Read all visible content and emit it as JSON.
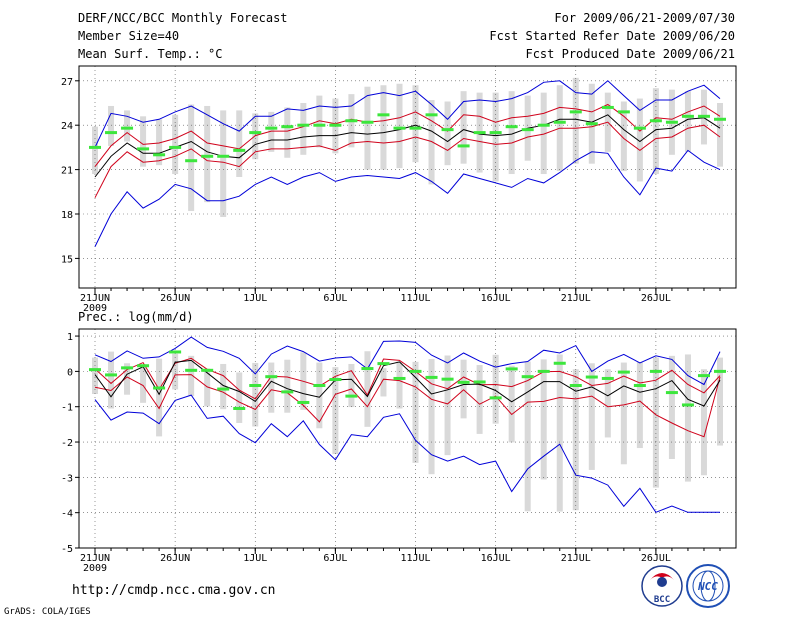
{
  "header": {
    "title": "DERF/NCC/BCC Monthly Forecast",
    "member_size": "Member Size=40",
    "forecast_period": "For 2009/06/21-2009/07/30",
    "started_refer": "Fcst Started Refer Date 2009/06/20",
    "produced_date": "Fcst Produced Date 2009/06/21"
  },
  "footer": {
    "url": "http://cmdp.ncc.cma.gov.cn",
    "grads_credit": "GrADS: COLA/IGES",
    "logo_bcc_text": "BCC",
    "logo_ncc_text": "NCC"
  },
  "colors": {
    "ensemble_mean": "#000000",
    "spread_band": "#d0021b",
    "extreme_range": "#0000d8",
    "observation_bar": "#d9d9d9",
    "green_marker": "#3ce63c"
  },
  "chart_data": [
    {
      "type": "line",
      "title": "Mean Surf. Temp.: °C",
      "x_days": 40,
      "xticks": [
        {
          "day": 0,
          "label": "21JUN"
        },
        {
          "day": 5,
          "label": "26JUN"
        },
        {
          "day": 10,
          "label": "1JUL"
        },
        {
          "day": 15,
          "label": "6JUL"
        },
        {
          "day": 20,
          "label": "11JUL"
        },
        {
          "day": 25,
          "label": "16JUL"
        },
        {
          "day": 30,
          "label": "21JUL"
        },
        {
          "day": 35,
          "label": "26JUL"
        }
      ],
      "year_label": "2009",
      "ylim": [
        13,
        28
      ],
      "yticks": [
        15,
        18,
        21,
        24,
        27
      ],
      "series": [
        {
          "name": "max",
          "values": [
            22.5,
            24.8,
            24.6,
            24.2,
            24.4,
            24.9,
            25.3,
            24.7,
            24.1,
            23.6,
            24.6,
            24.6,
            25.1,
            25.0,
            25.3,
            25.2,
            25.3,
            26.0,
            26.2,
            26.0,
            26.3,
            25.4,
            24.4,
            25.6,
            25.7,
            25.6,
            25.8,
            26.2,
            26.9,
            27.0,
            26.2,
            26.1,
            27.0,
            26.0,
            25.0,
            25.7,
            25.7,
            26.3,
            26.7,
            25.8
          ]
        },
        {
          "name": "upper",
          "values": [
            21.2,
            22.6,
            23.5,
            22.7,
            22.8,
            23.1,
            23.6,
            22.8,
            22.6,
            22.4,
            23.3,
            23.6,
            23.6,
            23.9,
            24.3,
            24.1,
            24.4,
            24.2,
            24.3,
            24.5,
            24.9,
            24.3,
            23.6,
            24.7,
            24.6,
            24.2,
            24.5,
            24.6,
            24.8,
            25.2,
            25.1,
            24.9,
            25.4,
            24.6,
            23.6,
            24.5,
            24.4,
            24.9,
            25.3,
            24.6
          ]
        },
        {
          "name": "mean",
          "values": [
            20.5,
            21.9,
            22.8,
            22.1,
            22.1,
            22.5,
            22.9,
            22.2,
            21.9,
            21.8,
            22.7,
            23.0,
            23.0,
            23.2,
            23.3,
            23.3,
            23.5,
            23.4,
            23.5,
            23.7,
            24.0,
            23.6,
            22.9,
            23.7,
            23.4,
            23.3,
            23.4,
            23.8,
            24.0,
            24.4,
            24.4,
            24.2,
            24.7,
            23.7,
            22.9,
            23.7,
            23.8,
            24.4,
            24.5,
            23.8
          ]
        },
        {
          "name": "lower",
          "values": [
            19.1,
            21.2,
            22.2,
            21.5,
            21.6,
            21.9,
            22.4,
            21.6,
            21.5,
            21.2,
            22.2,
            22.4,
            22.4,
            22.5,
            22.6,
            22.3,
            22.8,
            22.9,
            22.8,
            22.9,
            23.2,
            22.9,
            22.3,
            23.1,
            22.9,
            22.7,
            22.8,
            23.2,
            23.4,
            23.8,
            23.8,
            23.9,
            24.2,
            23.1,
            22.3,
            23.1,
            23.2,
            23.8,
            24.0,
            23.2
          ]
        },
        {
          "name": "min",
          "values": [
            15.8,
            18.0,
            19.5,
            18.4,
            19.0,
            20.0,
            19.7,
            18.9,
            18.9,
            19.2,
            20.0,
            20.5,
            20.0,
            20.5,
            20.8,
            20.2,
            20.5,
            20.6,
            20.5,
            20.4,
            20.8,
            20.2,
            19.4,
            20.7,
            20.4,
            20.1,
            19.8,
            20.4,
            20.1,
            20.8,
            21.6,
            22.2,
            22.1,
            20.5,
            19.3,
            21.1,
            20.9,
            22.3,
            21.5,
            21.0
          ]
        },
        {
          "name": "obs_upper",
          "values": [
            23.9,
            25.3,
            25.0,
            24.6,
            24.4,
            24.7,
            25.4,
            25.3,
            25.0,
            25.0,
            24.8,
            24.9,
            25.2,
            25.5,
            26.0,
            25.8,
            26.1,
            26.6,
            26.7,
            26.8,
            26.7,
            25.7,
            25.6,
            26.3,
            26.2,
            26.2,
            26.3,
            26.0,
            26.2,
            26.7,
            27.2,
            26.8,
            26.2,
            25.6,
            25.8,
            26.5,
            26.4,
            26.3,
            26.4,
            25.5
          ]
        },
        {
          "name": "obs_lower",
          "values": [
            20.7,
            22.6,
            22.9,
            21.2,
            21.3,
            20.7,
            18.2,
            18.8,
            17.8,
            20.5,
            21.7,
            22.2,
            21.8,
            22.0,
            22.5,
            22.1,
            22.5,
            21.0,
            21.0,
            21.1,
            21.5,
            20.0,
            21.3,
            21.4,
            20.8,
            20.2,
            20.7,
            21.6,
            20.7,
            20.9,
            21.4,
            21.4,
            22.2,
            20.9,
            20.2,
            20.7,
            22.0,
            22.2,
            22.7,
            21.2
          ]
        },
        {
          "name": "green_marker",
          "values": [
            22.5,
            23.5,
            23.8,
            22.4,
            22.0,
            22.5,
            21.6,
            21.9,
            21.9,
            22.3,
            23.5,
            23.8,
            23.9,
            24.0,
            24.0,
            24.0,
            24.3,
            24.2,
            24.7,
            23.8,
            23.8,
            24.7,
            23.7,
            22.6,
            23.5,
            23.5,
            23.9,
            23.7,
            24.0,
            24.2,
            24.9,
            24.1,
            25.2,
            24.9,
            23.8,
            24.3,
            24.2,
            24.6,
            24.6,
            24.4
          ]
        }
      ]
    },
    {
      "type": "line",
      "title": "Prec.: log(mm/d)",
      "x_days": 40,
      "xticks": [
        {
          "day": 0,
          "label": "21JUN"
        },
        {
          "day": 5,
          "label": "26JUN"
        },
        {
          "day": 10,
          "label": "1JUL"
        },
        {
          "day": 15,
          "label": "6JUL"
        },
        {
          "day": 20,
          "label": "11JUL"
        },
        {
          "day": 25,
          "label": "16JUL"
        },
        {
          "day": 30,
          "label": "21JUL"
        },
        {
          "day": 35,
          "label": "26JUL"
        }
      ],
      "year_label": "2009",
      "ylim": [
        -5,
        1.2
      ],
      "yticks": [
        -5,
        -4,
        -3,
        -2,
        -1,
        0,
        1
      ],
      "series": [
        {
          "name": "max",
          "values": [
            0.47,
            0.28,
            0.58,
            0.37,
            0.41,
            0.65,
            0.97,
            0.68,
            0.57,
            0.37,
            -0.07,
            0.49,
            0.72,
            0.56,
            0.29,
            0.38,
            0.41,
            0.07,
            0.85,
            0.86,
            0.82,
            0.46,
            0.24,
            0.52,
            0.29,
            0.12,
            0.22,
            0.28,
            0.6,
            0.52,
            0.73,
            0.0,
            0.29,
            0.48,
            0.24,
            0.44,
            0.34,
            -0.12,
            -0.37,
            0.56
          ]
        },
        {
          "name": "upper",
          "values": [
            0.07,
            -0.34,
            0.05,
            0.25,
            -0.51,
            0.23,
            0.37,
            0.06,
            -0.12,
            -0.53,
            -0.78,
            -0.14,
            -0.16,
            -0.28,
            -0.42,
            -0.14,
            0.02,
            -0.67,
            0.35,
            0.31,
            0.0,
            -0.35,
            -0.49,
            -0.16,
            -0.38,
            -0.37,
            -0.43,
            -0.26,
            -0.01,
            0.0,
            -0.15,
            -0.4,
            -0.34,
            -0.13,
            -0.33,
            -0.25,
            0.03,
            -0.37,
            -0.61,
            -0.12
          ]
        },
        {
          "name": "mean",
          "values": [
            -0.09,
            -0.72,
            -0.08,
            0.13,
            -0.65,
            0.26,
            0.31,
            -0.04,
            -0.4,
            -0.57,
            -0.85,
            -0.28,
            -0.49,
            -0.63,
            -0.73,
            -0.24,
            -0.22,
            -0.71,
            0.16,
            0.27,
            -0.17,
            -0.64,
            -0.52,
            -0.37,
            -0.36,
            -0.54,
            -0.86,
            -0.58,
            -0.29,
            -0.29,
            -0.56,
            -0.44,
            -0.69,
            -0.41,
            -0.59,
            -0.49,
            -0.26,
            -0.79,
            -0.98,
            -0.25
          ]
        },
        {
          "name": "lower",
          "values": [
            -0.45,
            -0.54,
            -0.16,
            -0.4,
            -1.05,
            -0.1,
            -0.09,
            -0.44,
            -0.59,
            -0.87,
            -1.08,
            -0.52,
            -0.61,
            -0.96,
            -1.43,
            -0.65,
            -0.5,
            -1.0,
            -0.22,
            -0.26,
            -0.44,
            -0.79,
            -0.92,
            -0.52,
            -0.93,
            -0.7,
            -1.22,
            -0.87,
            -0.85,
            -0.74,
            -0.78,
            -0.7,
            -1.0,
            -0.95,
            -0.84,
            -1.23,
            -1.46,
            -1.68,
            -1.85,
            -0.16
          ]
        },
        {
          "name": "min",
          "values": [
            -0.8,
            -1.38,
            -1.15,
            -1.18,
            -1.48,
            -0.82,
            -0.67,
            -1.33,
            -1.27,
            -1.76,
            -2.02,
            -1.48,
            -1.85,
            -1.4,
            -2.07,
            -2.5,
            -1.79,
            -1.85,
            -1.3,
            -1.2,
            -1.95,
            -2.36,
            -2.54,
            -2.4,
            -2.64,
            -2.54,
            -3.4,
            -2.76,
            -2.4,
            -2.06,
            -2.94,
            -3.02,
            -3.22,
            -3.82,
            -3.31,
            -3.99,
            -3.81,
            -3.99,
            -3.99,
            -3.99
          ]
        },
        {
          "name": "obs_upper",
          "values": [
            0.39,
            0.56,
            0.23,
            0.18,
            0.36,
            0.5,
            0.44,
            0.08,
            0.21,
            -0.03,
            0.24,
            0.25,
            0.33,
            0.54,
            0.25,
            0.12,
            0.21,
            0.57,
            0.09,
            0.28,
            0.27,
            0.35,
            0.45,
            0.33,
            0.18,
            0.47,
            0.16,
            0.28,
            0.34,
            0.48,
            0.06,
            0.23,
            0.06,
            0.25,
            0.26,
            0.39,
            0.44,
            0.48,
            0.06,
            0.39
          ]
        },
        {
          "name": "obs_lower",
          "values": [
            -0.64,
            -1.05,
            -0.66,
            -0.89,
            -1.84,
            -0.51,
            -0.7,
            -0.99,
            -1.07,
            -1.46,
            -1.56,
            -1.17,
            -1.17,
            -1.09,
            -1.61,
            -2.34,
            -1.01,
            -1.57,
            -0.71,
            -1.05,
            -2.59,
            -2.91,
            -2.37,
            -1.33,
            -1.77,
            -1.48,
            -2.01,
            -3.96,
            -3.06,
            -3.97,
            -3.93,
            -2.79,
            -1.87,
            -2.63,
            -2.17,
            -3.29,
            -2.48,
            -3.12,
            -2.94,
            -2.1
          ]
        },
        {
          "name": "green_marker",
          "values": [
            0.05,
            -0.1,
            0.1,
            0.16,
            -0.47,
            0.55,
            0.03,
            0.03,
            -0.5,
            -1.05,
            -0.4,
            -0.15,
            -0.58,
            -0.88,
            -0.4,
            -0.23,
            -0.7,
            0.08,
            0.22,
            -0.2,
            0.0,
            -0.17,
            -0.22,
            -0.31,
            -0.3,
            -0.75,
            0.07,
            -0.15,
            0.0,
            0.23,
            -0.4,
            -0.16,
            -0.2,
            -0.02,
            -0.4,
            0.0,
            -0.6,
            -0.95,
            -0.12,
            0.0
          ]
        }
      ]
    }
  ]
}
